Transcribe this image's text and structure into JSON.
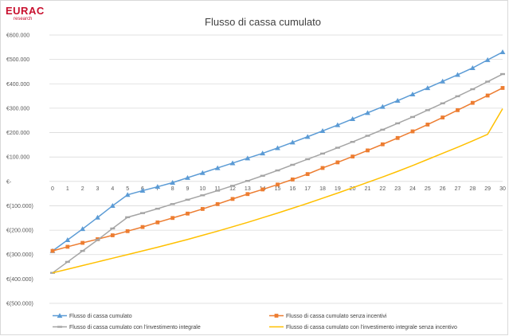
{
  "logo": {
    "main": "EURAC",
    "sub": "research"
  },
  "colors": {
    "series1": "#5b9bd5",
    "series2": "#ed7d31",
    "series3": "#a5a5a5",
    "series4": "#ffc000",
    "gridline": "#d9d9d9",
    "axis_text": "#595959"
  },
  "chart_data": {
    "type": "line",
    "title": "Flusso di cassa cumulato",
    "xlabel": "",
    "ylabel": "",
    "x": [
      0,
      1,
      2,
      3,
      4,
      5,
      6,
      7,
      8,
      9,
      10,
      11,
      12,
      13,
      14,
      15,
      16,
      17,
      18,
      19,
      20,
      21,
      22,
      23,
      24,
      25,
      26,
      27,
      28,
      29,
      30
    ],
    "ylim": [
      -500000,
      600000
    ],
    "y_ticks": [
      600000,
      500000,
      400000,
      300000,
      200000,
      100000,
      0,
      -100000,
      -200000,
      -300000,
      -400000,
      -500000
    ],
    "y_tick_labels": [
      "€600.000",
      "€500.000",
      "€400.000",
      "€300.000",
      "€200.000",
      "€100.000",
      "€-",
      "€(100.000)",
      "€(200.000)",
      "€(300.000)",
      "€(400.000)",
      "€(500.000)"
    ],
    "grid": true,
    "legend_position": "bottom",
    "series": [
      {
        "name": "Flusso di cassa cumulato",
        "color": "#5b9bd5",
        "marker": "triangle",
        "values": [
          -285000,
          -240000,
          -195000,
          -148000,
          -100000,
          -55000,
          -38000,
          -22000,
          -5000,
          15000,
          35000,
          55000,
          75000,
          95000,
          115000,
          137000,
          160000,
          183000,
          207000,
          231000,
          256000,
          281000,
          306000,
          331000,
          357000,
          383000,
          410000,
          437000,
          465000,
          498000,
          530000
        ]
      },
      {
        "name": "Flusso di cassa cumulato senza incentivi",
        "color": "#ed7d31",
        "marker": "square",
        "values": [
          -285000,
          -268000,
          -252000,
          -237000,
          -221000,
          -204000,
          -187000,
          -168000,
          -150000,
          -132000,
          -113000,
          -93000,
          -72000,
          -52000,
          -33000,
          -13000,
          8000,
          30000,
          55000,
          78000,
          102000,
          127000,
          152000,
          178000,
          205000,
          233000,
          262000,
          292000,
          322000,
          352000,
          383000
        ]
      },
      {
        "name": "Flusso di cassa cumulato con l'investimento integrale",
        "color": "#a5a5a5",
        "marker": "dash",
        "values": [
          -375000,
          -330000,
          -285000,
          -240000,
          -193000,
          -147000,
          -130000,
          -112000,
          -93000,
          -75000,
          -57000,
          -38000,
          -18000,
          2000,
          23000,
          45000,
          68000,
          91000,
          114000,
          138000,
          162000,
          187000,
          212000,
          238000,
          264000,
          292000,
          320000,
          349000,
          378000,
          409000,
          440000
        ]
      },
      {
        "name": "Flusso di cassa cumulato con l'investimento integrale senza incentivo",
        "color": "#ffc000",
        "marker": "none",
        "values": [
          -375000,
          -360000,
          -345000,
          -330000,
          -315000,
          -300000,
          -285000,
          -270000,
          -254000,
          -238000,
          -221000,
          -204000,
          -186000,
          -168000,
          -149000,
          -130000,
          -110000,
          -90000,
          -69000,
          -48000,
          -26000,
          -4000,
          18000,
          41000,
          65000,
          90000,
          115000,
          140000,
          166000,
          193000,
          298000
        ]
      }
    ]
  }
}
